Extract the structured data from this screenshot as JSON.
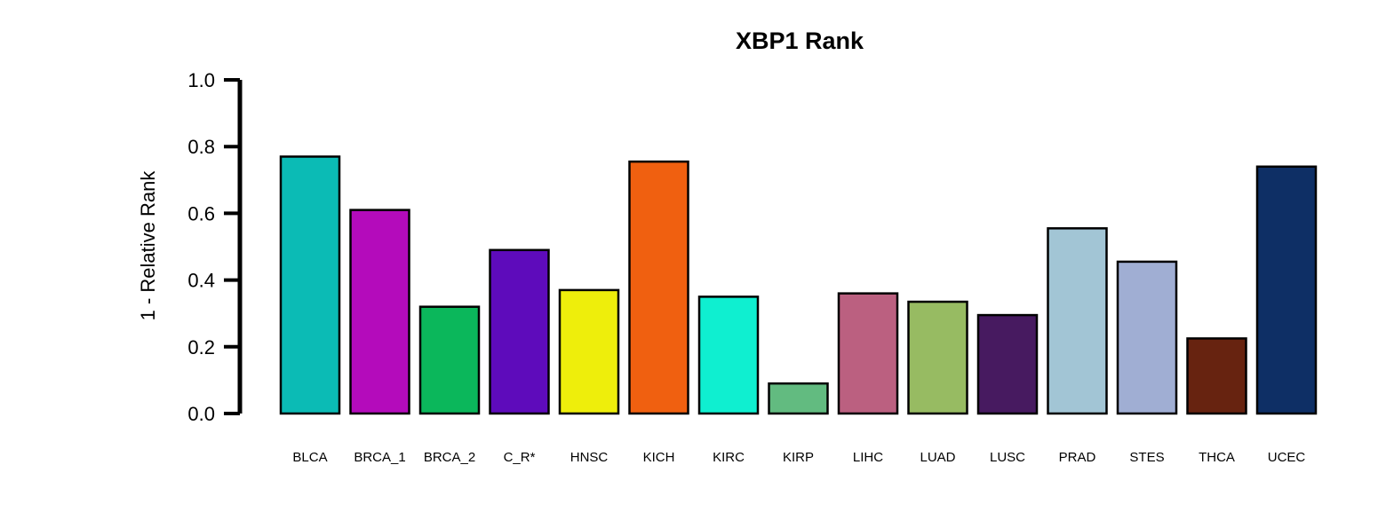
{
  "chart_data": {
    "type": "bar",
    "title": "XBP1 Rank",
    "xlabel": "",
    "ylabel": "1 - Relative Rank",
    "ylim": [
      0,
      1
    ],
    "yticks": [
      "0.0",
      "0.2",
      "0.4",
      "0.6",
      "0.8",
      "1.0"
    ],
    "grid": false,
    "legend": "none",
    "categories": [
      "BLCA",
      "BRCA_1",
      "BRCA_2",
      "C_R*",
      "HNSC",
      "KICH",
      "KIRC",
      "KIRP",
      "LIHC",
      "LUAD",
      "LUSC",
      "PRAD",
      "STES",
      "THCA",
      "UCEC"
    ],
    "values": [
      0.77,
      0.61,
      0.32,
      0.49,
      0.37,
      0.755,
      0.35,
      0.09,
      0.36,
      0.335,
      0.295,
      0.555,
      0.455,
      0.225,
      0.74
    ],
    "colors": [
      "#0BBBB5",
      "#B40BBB",
      "#0BB75B",
      "#5E0BBB",
      "#EEEE0B",
      "#F06010",
      "#0FEFD0",
      "#62BB80",
      "#BB6080",
      "#97BB62",
      "#471A60",
      "#A2C5D5",
      "#A0AED3",
      "#672310",
      "#0E2F65"
    ]
  }
}
